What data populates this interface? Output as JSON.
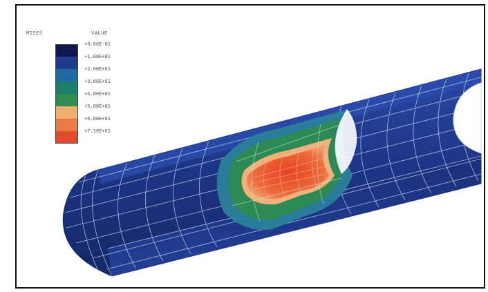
{
  "legend": {
    "header_left": "MISES",
    "header_right": "VALUE",
    "ticks": [
      "+9.68E-01",
      "+1.00E+01",
      "+2.00E+01",
      "+3.00E+01",
      "+4.00E+01",
      "+5.00E+01",
      "+6.00E+01",
      "+7.10E+01"
    ],
    "colors": [
      "#10184f",
      "#1d3a8c",
      "#1f6aa0",
      "#1e7e6e",
      "#2f8d4f",
      "#f0ae6e",
      "#ec7a47",
      "#e14a2a"
    ]
  },
  "colors": {
    "frame_border": "#111111",
    "tube_dark": "#1c3280",
    "tube_light": "#2a4ba8",
    "mesh": "#cfd8f0",
    "green": "#2e8a55",
    "teal": "#2a7f9b",
    "orange": "#ee8a55",
    "red": "#e8552d"
  }
}
